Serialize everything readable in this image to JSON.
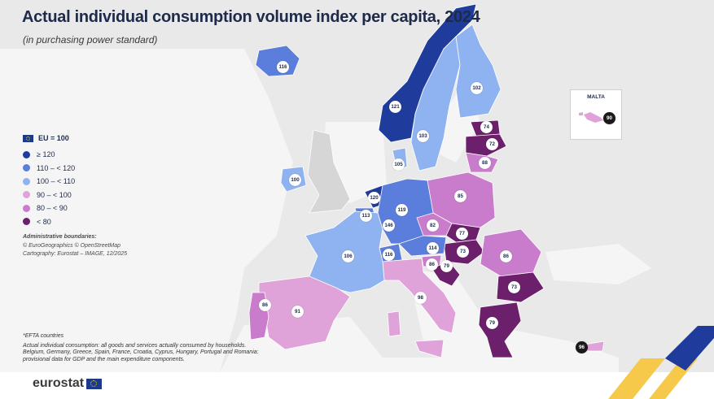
{
  "title": "Actual individual consumption volume index per capita, 2024",
  "subtitle": "(in purchasing power standard)",
  "legend": {
    "header": "EU = 100",
    "classes": [
      {
        "label": "≥ 120",
        "color": "#1f3c9c"
      },
      {
        "label": "110 – < 120",
        "color": "#5b7ddb"
      },
      {
        "label": "100 – < 110",
        "color": "#8fb3f1"
      },
      {
        "label": "90 – < 100",
        "color": "#e0a3d9"
      },
      {
        "label": "80 – < 90",
        "color": "#c97bcc"
      },
      {
        "label": "< 80",
        "color": "#6c1f6a"
      }
    ]
  },
  "admin": {
    "heading": "Administrative boundaries:",
    "line1": "© EuroGeographics © OpenStreetMap",
    "line2": "Cartography: Eurostat – IMAGE, 12/2025"
  },
  "footnote": {
    "efta": "*EFTA countries",
    "text": "Actual individual consumption: all goods and services actually consumed by households. Belgium, Germany, Greece, Spain, France, Croatia, Cyprus, Hungary, Portugal and Romania: provisional data for GDP and the main expenditure components."
  },
  "inset": {
    "label": "MALTA",
    "value": "90"
  },
  "countries": [
    {
      "id": "iceland",
      "value": "116",
      "class": 1
    },
    {
      "id": "norway",
      "value": "121",
      "class": 0
    },
    {
      "id": "sweden",
      "value": "103",
      "class": 2
    },
    {
      "id": "finland",
      "value": "102",
      "class": 2
    },
    {
      "id": "estonia",
      "value": "74",
      "class": 5
    },
    {
      "id": "latvia",
      "value": "72",
      "class": 5
    },
    {
      "id": "lithuania",
      "value": "88",
      "class": 4
    },
    {
      "id": "denmark",
      "value": "105",
      "class": 2
    },
    {
      "id": "ireland",
      "value": "100",
      "class": 2
    },
    {
      "id": "netherlands",
      "value": "120",
      "class": 0
    },
    {
      "id": "belgium",
      "value": "113",
      "class": 1
    },
    {
      "id": "luxembourg",
      "value": "146",
      "class": 0
    },
    {
      "id": "germany",
      "value": "119",
      "class": 1
    },
    {
      "id": "poland",
      "value": "85",
      "class": 4
    },
    {
      "id": "czechia",
      "value": "82",
      "class": 4
    },
    {
      "id": "slovakia",
      "value": "77",
      "class": 5
    },
    {
      "id": "hungary",
      "value": "73",
      "class": 5
    },
    {
      "id": "austria",
      "value": "114",
      "class": 1
    },
    {
      "id": "switzerland",
      "value": "116",
      "class": 1
    },
    {
      "id": "slovenia",
      "value": "86",
      "class": 4
    },
    {
      "id": "croatia",
      "value": "79",
      "class": 5
    },
    {
      "id": "romania",
      "value": "86",
      "class": 4
    },
    {
      "id": "bulgaria",
      "value": "73",
      "class": 5
    },
    {
      "id": "greece",
      "value": "79",
      "class": 5
    },
    {
      "id": "italy",
      "value": "98",
      "class": 3
    },
    {
      "id": "france",
      "value": "106",
      "class": 2
    },
    {
      "id": "spain",
      "value": "91",
      "class": 3
    },
    {
      "id": "portugal",
      "value": "86",
      "class": 4
    },
    {
      "id": "cyprus",
      "value": "96",
      "class": 3
    }
  ],
  "logo": "eurostat"
}
